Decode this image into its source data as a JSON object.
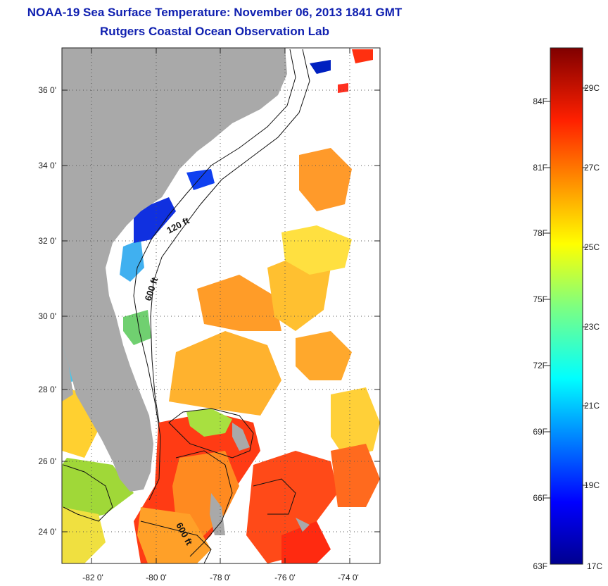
{
  "title": "NOAA-19 Sea Surface Temperature:  November 06, 2013 1841 GMT",
  "subtitle": "Rutgers Coastal Ocean Observation Lab",
  "map": {
    "lat_labels": [
      "36 0'",
      "34 0'",
      "32 0'",
      "30 0'",
      "28 0'",
      "26 0'",
      "24 0'"
    ],
    "lon_labels": [
      "-82 0'",
      "-80 0'",
      "-78 0'",
      "-76 0'",
      "-74 0'"
    ],
    "contour_labels": [
      "120 ft",
      "600 ft",
      "600 ft"
    ],
    "colors": {
      "land": "#a9a9a9",
      "cloud": "#ffffff"
    }
  },
  "colorbar": {
    "fahrenheit": [
      "84F",
      "81F",
      "78F",
      "75F",
      "72F",
      "69F",
      "66F",
      "63F"
    ],
    "celsius": [
      "29C",
      "27C",
      "25C",
      "23C",
      "21C",
      "19C",
      "17C"
    ],
    "range_c": [
      17,
      30
    ]
  }
}
